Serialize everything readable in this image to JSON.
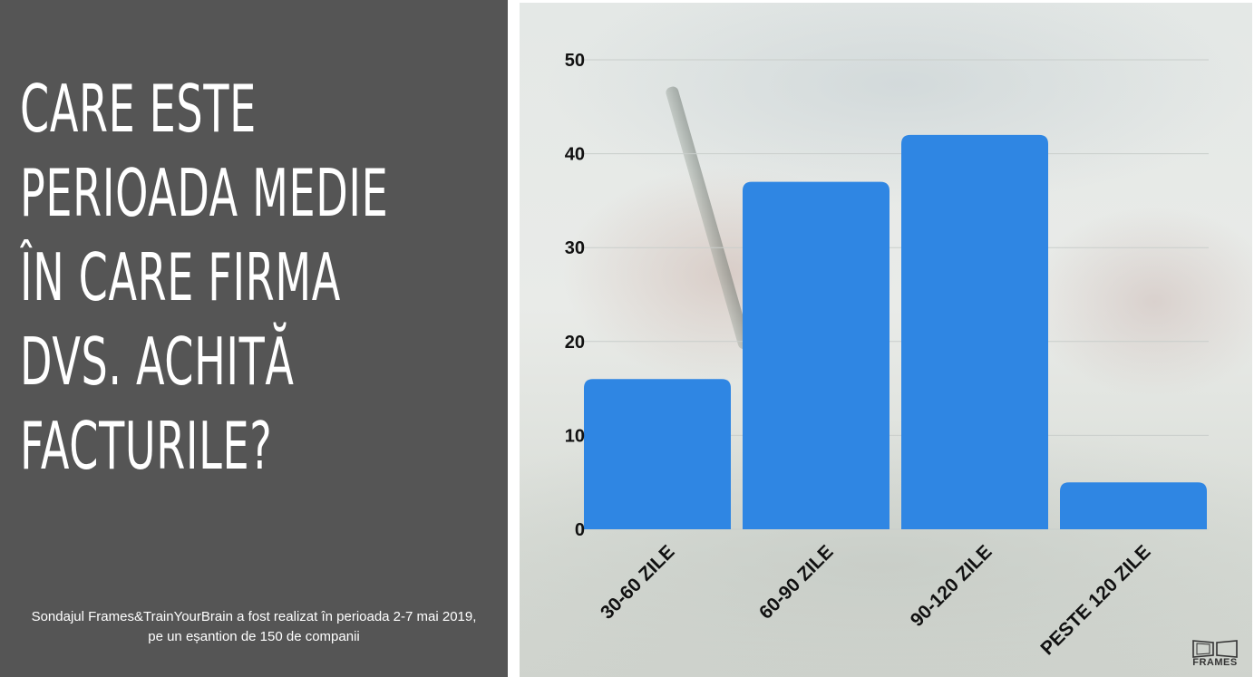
{
  "question": {
    "lines": [
      "CARE ESTE",
      "PERIOADA MEDIE",
      "ÎN CARE FIRMA",
      "DVS. ACHITĂ",
      "FACTURILE?"
    ]
  },
  "footnote": {
    "line1": "Sondajul Frames&TrainYourBrain a fost realizat în perioada 2-7 mai 2019,",
    "line2": "pe un eșantion de 150 de companii"
  },
  "logo": {
    "text": "FRAMES",
    "icon": "frames-logo-icon"
  },
  "chart_data": {
    "type": "bar",
    "categories": [
      "30-60 ZILE",
      "60-90 ZILE",
      "90-120 ZILE",
      "PESTE 120 ZILE"
    ],
    "values": [
      16,
      37,
      42,
      5
    ],
    "ylim": [
      0,
      50
    ],
    "yticks": [
      0,
      10,
      20,
      30,
      40,
      50
    ],
    "grid": true,
    "bar_color": "#2f86e3",
    "title": "",
    "xlabel": "",
    "ylabel": ""
  }
}
